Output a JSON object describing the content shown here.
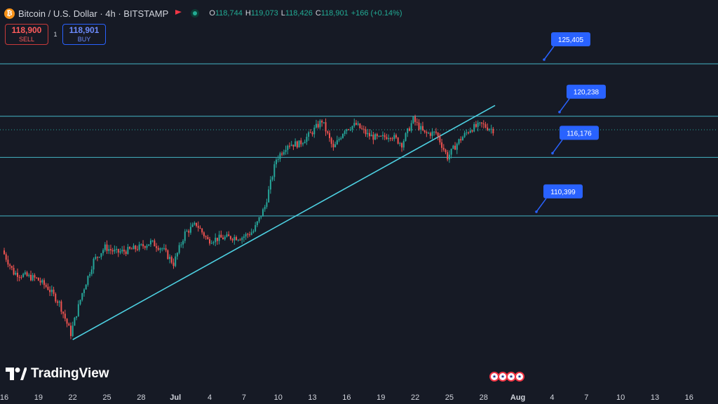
{
  "header": {
    "title": "Bitcoin / U.S. Dollar · 4h · BITSTAMP",
    "ohlc": [
      {
        "key": "O",
        "value": "118,744"
      },
      {
        "key": "H",
        "value": "119,073"
      },
      {
        "key": "L",
        "value": "118,426"
      },
      {
        "key": "C",
        "value": "118,901"
      }
    ],
    "change": "+166 (+0.14%)"
  },
  "trade": {
    "sell_price": "118,900",
    "sell_label": "SELL",
    "spread": "1",
    "buy_price": "118,901",
    "buy_label": "BUY"
  },
  "brand": "TradingView",
  "colors": {
    "up": "#26a69a",
    "down": "#ef5350",
    "levels": "#4dd0e1",
    "callout": "#2962ff",
    "background": "#161a25"
  },
  "chart_data": {
    "type": "candlestick",
    "timeframe": "4h",
    "x_ticks": [
      "16",
      "19",
      "22",
      "25",
      "28",
      "Jul",
      "4",
      "7",
      "10",
      "13",
      "16",
      "19",
      "22",
      "25",
      "28",
      "Aug",
      "4",
      "7",
      "10",
      "13",
      "16"
    ],
    "horizontal_levels": [
      {
        "label": "125,405",
        "value": 125405
      },
      {
        "label": "120,238",
        "value": 120238
      },
      {
        "label": "116,176",
        "value": 116176
      },
      {
        "label": "110,399",
        "value": 110399
      }
    ],
    "trendline": {
      "from": {
        "date": "Jun 22",
        "price": 98200
      },
      "to": {
        "date": "Jul 29",
        "price": 121300
      }
    },
    "last_price": 118901,
    "series": [
      {
        "date": "Jun 16",
        "close": 107000
      },
      {
        "date": "Jun 17",
        "close": 104800
      },
      {
        "date": "Jun 18",
        "close": 104500
      },
      {
        "date": "Jun 19",
        "close": 104200
      },
      {
        "date": "Jun 20",
        "close": 103300
      },
      {
        "date": "Jun 21",
        "close": 101800
      },
      {
        "date": "Jun 22",
        "close": 98800
      },
      {
        "date": "Jun 23",
        "close": 102800
      },
      {
        "date": "Jun 24",
        "close": 106000
      },
      {
        "date": "Jun 25",
        "close": 107300
      },
      {
        "date": "Jun 26",
        "close": 106800
      },
      {
        "date": "Jun 27",
        "close": 107000
      },
      {
        "date": "Jun 28",
        "close": 107300
      },
      {
        "date": "Jun 29",
        "close": 107800
      },
      {
        "date": "Jun 30",
        "close": 107200
      },
      {
        "date": "Jul 1",
        "close": 105700
      },
      {
        "date": "Jul 2",
        "close": 108700
      },
      {
        "date": "Jul 3",
        "close": 109600
      },
      {
        "date": "Jul 4",
        "close": 108000
      },
      {
        "date": "Jul 5",
        "close": 108200
      },
      {
        "date": "Jul 6",
        "close": 108300
      },
      {
        "date": "Jul 7",
        "close": 108300
      },
      {
        "date": "Jul 8",
        "close": 108900
      },
      {
        "date": "Jul 9",
        "close": 111300
      },
      {
        "date": "Jul 10",
        "close": 116000
      },
      {
        "date": "Jul 11",
        "close": 117500
      },
      {
        "date": "Jul 12",
        "close": 117500
      },
      {
        "date": "Jul 13",
        "close": 118500
      },
      {
        "date": "Jul 14",
        "close": 119800
      },
      {
        "date": "Jul 15",
        "close": 117000
      },
      {
        "date": "Jul 16",
        "close": 119000
      },
      {
        "date": "Jul 17",
        "close": 119400
      },
      {
        "date": "Jul 18",
        "close": 118400
      },
      {
        "date": "Jul 19",
        "close": 118000
      },
      {
        "date": "Jul 20",
        "close": 118400
      },
      {
        "date": "Jul 21",
        "close": 117500
      },
      {
        "date": "Jul 22",
        "close": 119900
      },
      {
        "date": "Jul 23",
        "close": 118500
      },
      {
        "date": "Jul 24",
        "close": 118600
      },
      {
        "date": "Jul 25",
        "close": 116200
      },
      {
        "date": "Jul 26",
        "close": 117800
      },
      {
        "date": "Jul 27",
        "close": 119000
      },
      {
        "date": "Jul 28",
        "close": 119400
      },
      {
        "date": "Jul 29",
        "close": 118900
      }
    ]
  }
}
